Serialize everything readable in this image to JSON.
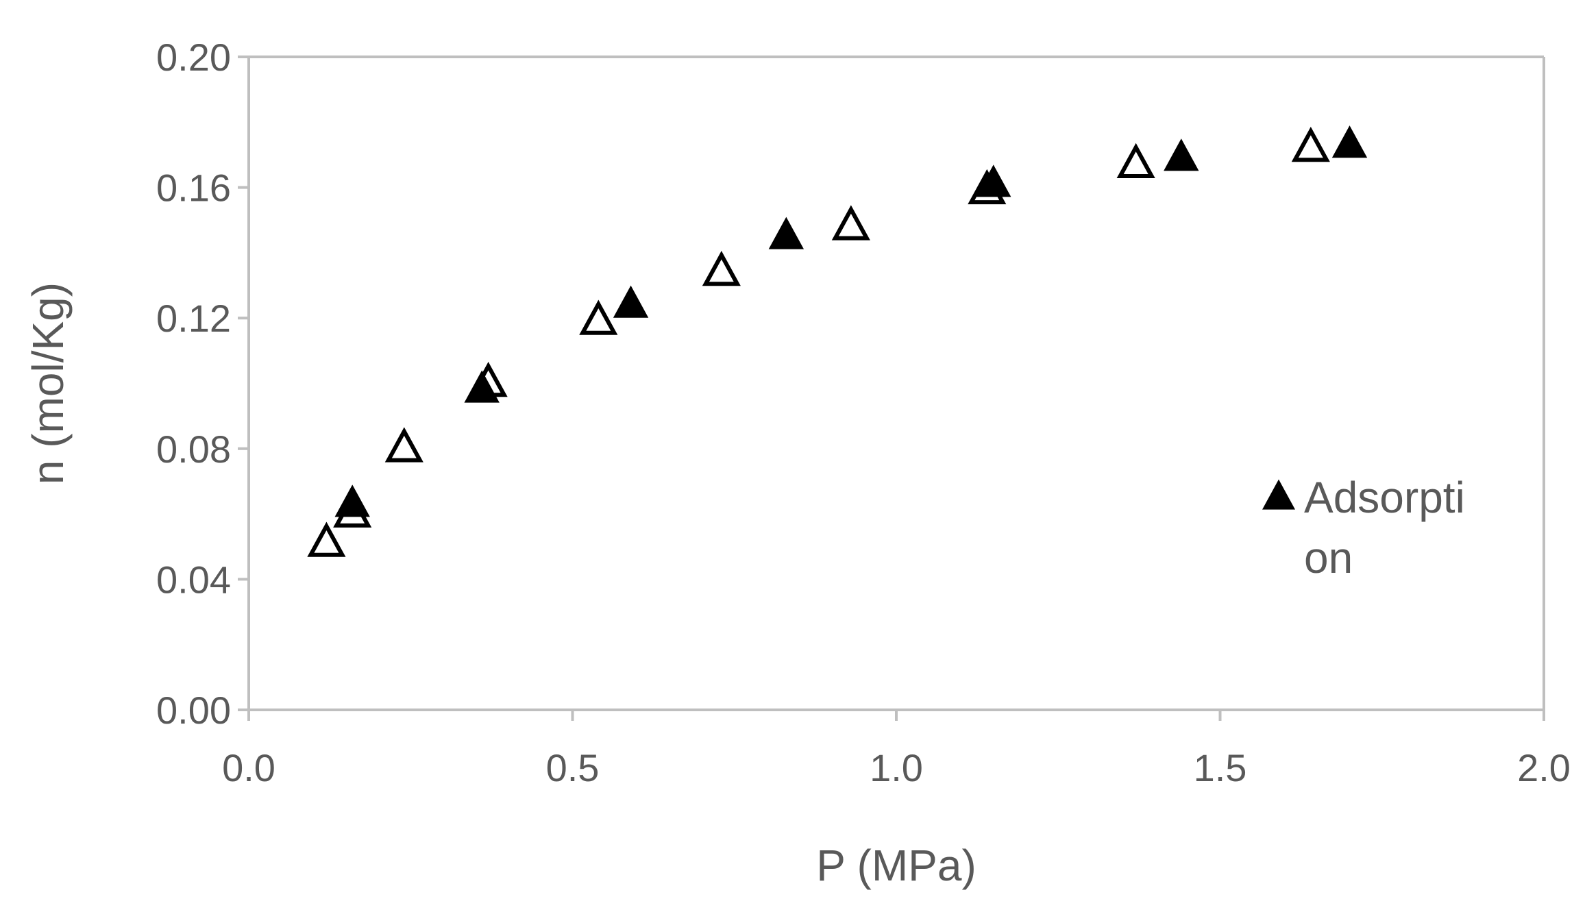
{
  "colors": {
    "axis": "#bfbfbf",
    "text": "#595959",
    "marker": "#000000",
    "background": "#ffffff"
  },
  "chart_data": {
    "type": "scatter",
    "title": "",
    "xlabel": "P (MPa)",
    "ylabel": "n (mol/Kg)",
    "xlim": [
      0.0,
      2.0
    ],
    "ylim": [
      0.0,
      0.2
    ],
    "x_ticks": [
      "0.0",
      "0.5",
      "1.0",
      "1.5",
      "2.0"
    ],
    "y_ticks": [
      "0.00",
      "0.04",
      "0.08",
      "0.12",
      "0.16",
      "0.20"
    ],
    "grid": false,
    "legend_position": "right",
    "series": [
      {
        "name": "Adsorpti\non",
        "legend_lines": [
          "Adsorpti",
          "on"
        ],
        "marker": "filled-triangle",
        "points": [
          {
            "x": 0.16,
            "y": 0.063
          },
          {
            "x": 0.36,
            "y": 0.098
          },
          {
            "x": 0.59,
            "y": 0.124
          },
          {
            "x": 0.83,
            "y": 0.145
          },
          {
            "x": 1.15,
            "y": 0.161
          },
          {
            "x": 1.44,
            "y": 0.169
          },
          {
            "x": 1.7,
            "y": 0.173
          }
        ]
      },
      {
        "marker": "open-triangle",
        "points": [
          {
            "x": 0.12,
            "y": 0.051
          },
          {
            "x": 0.16,
            "y": 0.06
          },
          {
            "x": 0.24,
            "y": 0.08
          },
          {
            "x": 0.37,
            "y": 0.1
          },
          {
            "x": 0.54,
            "y": 0.119
          },
          {
            "x": 0.73,
            "y": 0.134
          },
          {
            "x": 0.93,
            "y": 0.148
          },
          {
            "x": 1.14,
            "y": 0.159
          },
          {
            "x": 1.37,
            "y": 0.167
          },
          {
            "x": 1.64,
            "y": 0.172
          }
        ]
      }
    ]
  }
}
